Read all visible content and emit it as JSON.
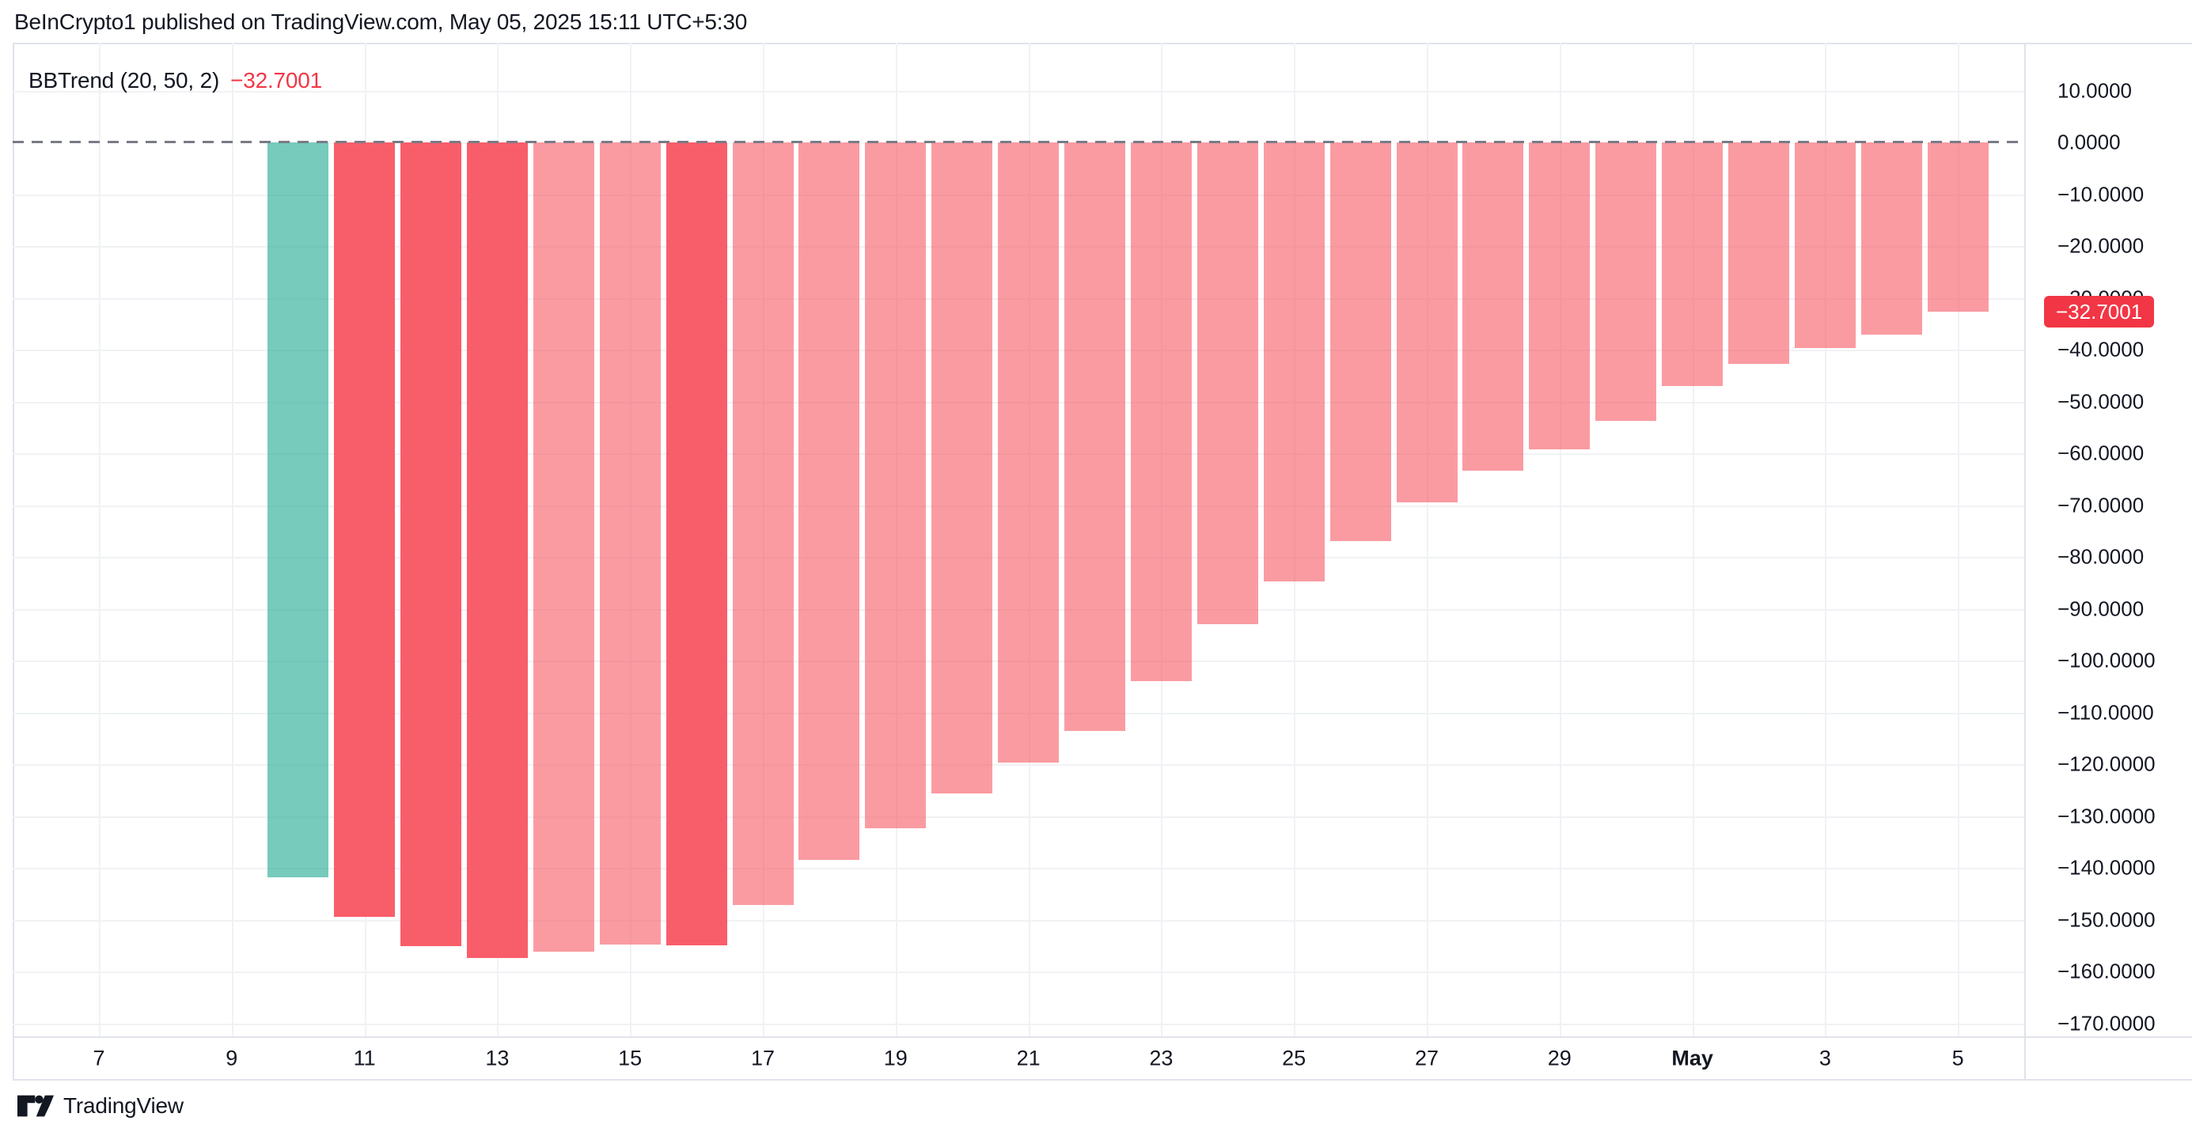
{
  "attribution": {
    "text": "BeInCrypto1 published on TradingView.com, May 05, 2025 15:11 UTC+5:30"
  },
  "pane": {
    "indicator_title": "BBTrend (20, 50, 2)",
    "indicator_value": "−32.7001"
  },
  "price_scale": {
    "labels": [
      {
        "text": "10.0000",
        "value": 10
      },
      {
        "text": "0.0000",
        "value": 0
      },
      {
        "text": "−10.0000",
        "value": -10
      },
      {
        "text": "−20.0000",
        "value": -20
      },
      {
        "text": "−30.0000",
        "value": -30
      },
      {
        "text": "−40.0000",
        "value": -40
      },
      {
        "text": "−50.0000",
        "value": -50
      },
      {
        "text": "−60.0000",
        "value": -60
      },
      {
        "text": "−70.0000",
        "value": -70
      },
      {
        "text": "−80.0000",
        "value": -80
      },
      {
        "text": "−90.0000",
        "value": -90
      },
      {
        "text": "−100.0000",
        "value": -100
      },
      {
        "text": "−110.0000",
        "value": -110
      },
      {
        "text": "−120.0000",
        "value": -120
      },
      {
        "text": "−130.0000",
        "value": -130
      },
      {
        "text": "−140.0000",
        "value": -140
      },
      {
        "text": "−150.0000",
        "value": -150
      },
      {
        "text": "−160.0000",
        "value": -160
      },
      {
        "text": "−170.0000",
        "value": -170
      }
    ],
    "badge": {
      "text": "−32.7001",
      "value": -32.7001,
      "color": "#f23645"
    }
  },
  "time_scale": {
    "labels": [
      {
        "text": "7",
        "day_index": 0,
        "bold": false
      },
      {
        "text": "9",
        "day_index": 2,
        "bold": false
      },
      {
        "text": "11",
        "day_index": 4,
        "bold": false
      },
      {
        "text": "13",
        "day_index": 6,
        "bold": false
      },
      {
        "text": "15",
        "day_index": 8,
        "bold": false
      },
      {
        "text": "17",
        "day_index": 10,
        "bold": false
      },
      {
        "text": "19",
        "day_index": 12,
        "bold": false
      },
      {
        "text": "21",
        "day_index": 14,
        "bold": false
      },
      {
        "text": "23",
        "day_index": 16,
        "bold": false
      },
      {
        "text": "25",
        "day_index": 18,
        "bold": false
      },
      {
        "text": "27",
        "day_index": 20,
        "bold": false
      },
      {
        "text": "29",
        "day_index": 22,
        "bold": false
      },
      {
        "text": "May",
        "day_index": 24,
        "bold": true
      },
      {
        "text": "3",
        "day_index": 26,
        "bold": false
      },
      {
        "text": "5",
        "day_index": 28,
        "bold": false
      }
    ]
  },
  "logo": {
    "text": "TradingView"
  },
  "chart_data": {
    "type": "bar",
    "title": "BBTrend (20, 50, 2)",
    "series_name": "BBTrend",
    "categories": [
      "Apr 10",
      "Apr 11",
      "Apr 12",
      "Apr 13",
      "Apr 14",
      "Apr 15",
      "Apr 16",
      "Apr 17",
      "Apr 18",
      "Apr 19",
      "Apr 20",
      "Apr 21",
      "Apr 22",
      "Apr 23",
      "Apr 24",
      "Apr 25",
      "Apr 26",
      "Apr 27",
      "Apr 28",
      "Apr 29",
      "Apr 30",
      "May 1",
      "May 2",
      "May 3",
      "May 4",
      "May 5"
    ],
    "values": [
      -141.8,
      -149.4,
      -155.1,
      -157.4,
      -156.2,
      -154.8,
      -155.0,
      -147.1,
      -138.4,
      -132.3,
      -125.7,
      -119.7,
      -113.6,
      -104.0,
      -93.0,
      -84.7,
      -77.0,
      -69.5,
      -63.4,
      -59.2,
      -53.7,
      -47.0,
      -42.8,
      -39.7,
      -37.1,
      -32.7001
    ],
    "point_colors": [
      "up",
      "down",
      "down",
      "down",
      "down_light",
      "down_light",
      "down",
      "down_light",
      "down_light",
      "down_light",
      "down_light",
      "down_light",
      "down_light",
      "down_light",
      "down_light",
      "down_light",
      "down_light",
      "down_light",
      "down_light",
      "down_light",
      "down_light",
      "down_light",
      "down_light",
      "down_light",
      "down_light",
      "down_light"
    ],
    "colors": {
      "up": "rgba(34,171,148,0.62)",
      "down": "rgba(247,82,95,0.93)",
      "down_light": "rgba(247,82,95,0.58)",
      "badge": "#f23645",
      "zero_line": "#787b86",
      "grid": "#f0f2f5"
    },
    "last_value": -32.7001,
    "xlabel": "",
    "ylabel": "",
    "ylim": [
      -172.5,
      19.2
    ],
    "y_tick_step": 10,
    "y_tick_range": [
      10,
      -170
    ],
    "x_tick_labels": [
      "7",
      "9",
      "11",
      "13",
      "15",
      "17",
      "19",
      "21",
      "23",
      "25",
      "27",
      "29",
      "May",
      "3",
      "5"
    ],
    "zero_line_style": "dashed",
    "grid": true,
    "legend_position": "none",
    "first_bar_date": "Apr 10",
    "last_bar_date": "May 5"
  }
}
